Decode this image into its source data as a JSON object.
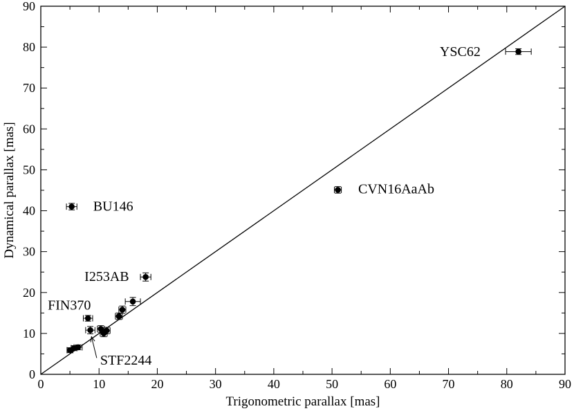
{
  "chart_data": {
    "type": "scatter",
    "xlabel": "Trigonometric parallax [mas]",
    "ylabel": "Dynamical parallax [mas]",
    "xlim": [
      0,
      90
    ],
    "ylim": [
      0,
      90
    ],
    "xticks": [
      0,
      10,
      20,
      30,
      40,
      50,
      60,
      70,
      80,
      90
    ],
    "yticks": [
      0,
      10,
      20,
      30,
      40,
      50,
      60,
      70,
      80,
      90
    ],
    "xtick_labels": [
      "0",
      "10",
      "20",
      "30",
      "40",
      "50",
      "60",
      "70",
      "80",
      "90"
    ],
    "ytick_labels": [
      "0",
      "10",
      "20",
      "30",
      "40",
      "50",
      "60",
      "70",
      "80",
      "90"
    ],
    "grid": false,
    "reference_line": {
      "x": [
        0,
        90
      ],
      "y": [
        0,
        90
      ]
    },
    "points": [
      {
        "x": 82.0,
        "y": 78.9,
        "xerr": 2.2,
        "yerr": 0.7
      },
      {
        "x": 51.0,
        "y": 45.1,
        "xerr": 0.6,
        "yerr": 0.8
      },
      {
        "x": 5.3,
        "y": 41.0,
        "xerr": 0.9,
        "yerr": 0.8
      },
      {
        "x": 18.0,
        "y": 23.8,
        "xerr": 0.9,
        "yerr": 1.0
      },
      {
        "x": 15.8,
        "y": 17.8,
        "xerr": 1.3,
        "yerr": 1.0
      },
      {
        "x": 14.0,
        "y": 15.8,
        "xerr": 0.6,
        "yerr": 0.9
      },
      {
        "x": 13.4,
        "y": 14.2,
        "xerr": 0.6,
        "yerr": 0.8
      },
      {
        "x": 8.1,
        "y": 13.7,
        "xerr": 0.8,
        "yerr": 0.7
      },
      {
        "x": 8.5,
        "y": 10.8,
        "xerr": 0.8,
        "yerr": 0.9
      },
      {
        "x": 10.3,
        "y": 11.1,
        "xerr": 0.6,
        "yerr": 0.8
      },
      {
        "x": 11.3,
        "y": 10.7,
        "xerr": 0.6,
        "yerr": 0.8
      },
      {
        "x": 10.8,
        "y": 10.0,
        "xerr": 0.6,
        "yerr": 0.8
      },
      {
        "x": 6.4,
        "y": 6.6,
        "xerr": 0.7,
        "yerr": 0.6
      },
      {
        "x": 5.7,
        "y": 6.4,
        "xerr": 0.5,
        "yerr": 0.6
      },
      {
        "x": 5.0,
        "y": 5.9,
        "xerr": 0.5,
        "yerr": 0.6
      }
    ],
    "annotations": [
      {
        "text": "YSC62",
        "x": 68.5,
        "y": 77.8
      },
      {
        "text": "CVN16AaAb",
        "x": 54.5,
        "y": 44.2
      },
      {
        "text": "BU146",
        "x": 9.0,
        "y": 40.0
      },
      {
        "text": "I253AB",
        "x": 7.5,
        "y": 22.8
      },
      {
        "text": "FIN370",
        "x": 1.2,
        "y": 15.8
      },
      {
        "text": "STF2244",
        "x": 10.2,
        "y": 2.4
      }
    ],
    "arrows": [
      {
        "from": [
          9.6,
          4.0
        ],
        "to": [
          8.7,
          9.2
        ]
      }
    ]
  }
}
